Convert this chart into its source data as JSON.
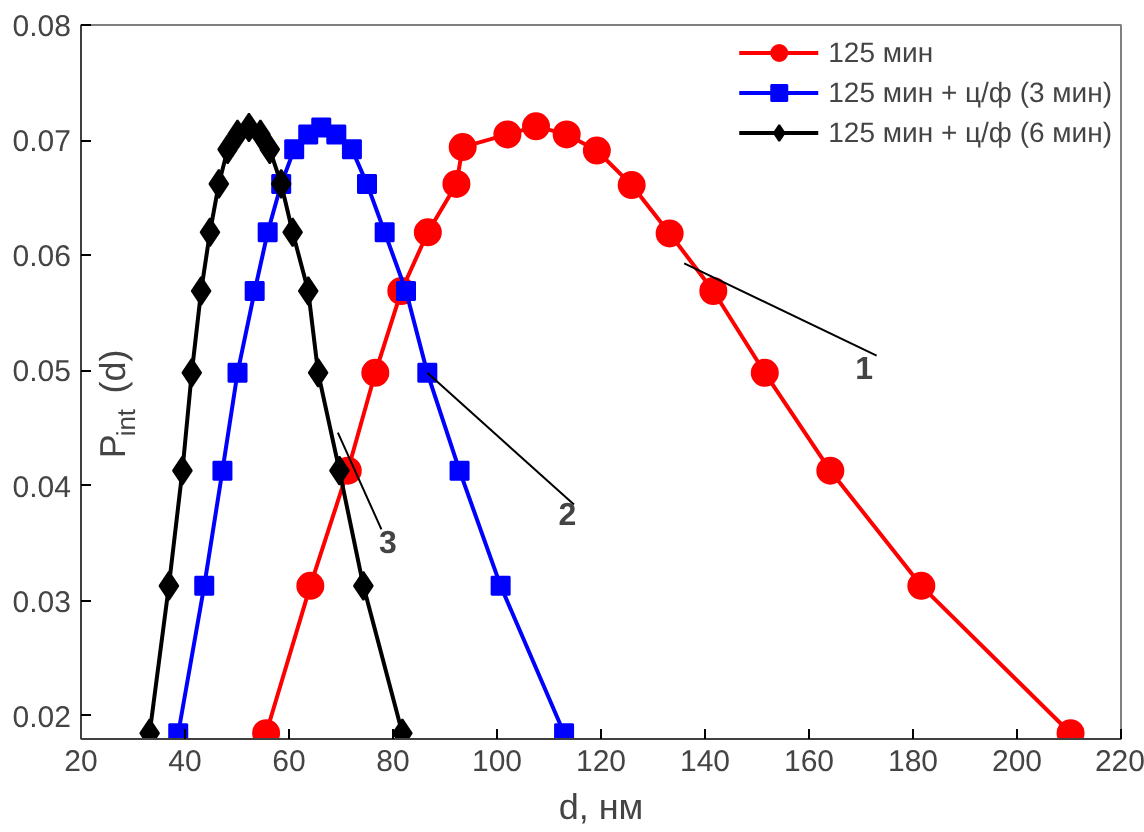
{
  "chart_data": {
    "type": "line",
    "xlabel": "d, нм",
    "ylabel": "P$_{int}$ (d)",
    "xlim": [
      20,
      220
    ],
    "ylim": [
      0.018,
      0.08
    ],
    "xticks": [
      20,
      40,
      60,
      80,
      100,
      120,
      140,
      160,
      180,
      200,
      220
    ],
    "yticks": [
      0.02,
      0.03,
      0.04,
      0.05,
      0.06,
      0.07,
      0.08
    ],
    "grid": false,
    "legend": "top right",
    "series": [
      {
        "name": "125 мин",
        "color": "#ff0000",
        "marker": "circle",
        "x": [
          55.6,
          64.1,
          71.3,
          76.6,
          81.6,
          86.7,
          92.2,
          93.4,
          102,
          107.5,
          113.4,
          119.2,
          125.9,
          133.2,
          141.6,
          151.5,
          164.1,
          181.6,
          210.3
        ],
        "values": [
          0.0185,
          0.0313,
          0.0413,
          0.0498,
          0.0569,
          0.062,
          0.0662,
          0.0694,
          0.0705,
          0.0712,
          0.0705,
          0.0691,
          0.0661,
          0.0619,
          0.0569,
          0.0498,
          0.0413,
          0.0313,
          0.0185
        ]
      },
      {
        "name": "125 мин + ц/ф (3 мин)",
        "color": "#0000ff",
        "marker": "square",
        "x": [
          38.7,
          43.7,
          47.2,
          50.1,
          53.4,
          55.9,
          58.5,
          61,
          63.7,
          66.2,
          69.1,
          72.1,
          75,
          78.4,
          82.5,
          86.6,
          92.8,
          100.7,
          112.9
        ],
        "values": [
          0.0185,
          0.0313,
          0.0413,
          0.0498,
          0.0569,
          0.062,
          0.0662,
          0.0692,
          0.0705,
          0.0711,
          0.0705,
          0.0692,
          0.0662,
          0.062,
          0.0569,
          0.0498,
          0.0413,
          0.0313,
          0.0185
        ]
      },
      {
        "name": "125 мин + ц/ф (6 мин)",
        "color": "#000000",
        "marker": "diamond",
        "x": [
          33.2,
          36.9,
          39.5,
          41.3,
          43.1,
          44.8,
          46.5,
          48.2,
          50.1,
          52.3,
          54.5,
          56.3,
          58.5,
          60.7,
          63.7,
          65.6,
          69.7,
          74.3,
          81.8
        ],
        "values": [
          0.0185,
          0.0313,
          0.0413,
          0.0498,
          0.0569,
          0.062,
          0.0662,
          0.0692,
          0.0705,
          0.0711,
          0.0705,
          0.0692,
          0.0662,
          0.062,
          0.0569,
          0.0498,
          0.0413,
          0.0313,
          0.0185
        ]
      }
    ],
    "annotations": [
      {
        "text": "1",
        "x": 136,
        "y": 0.0593
      },
      {
        "text": "2",
        "x": 86.6,
        "y": 0.0498
      },
      {
        "text": "3",
        "x": 69.4,
        "y": 0.0446
      }
    ]
  }
}
